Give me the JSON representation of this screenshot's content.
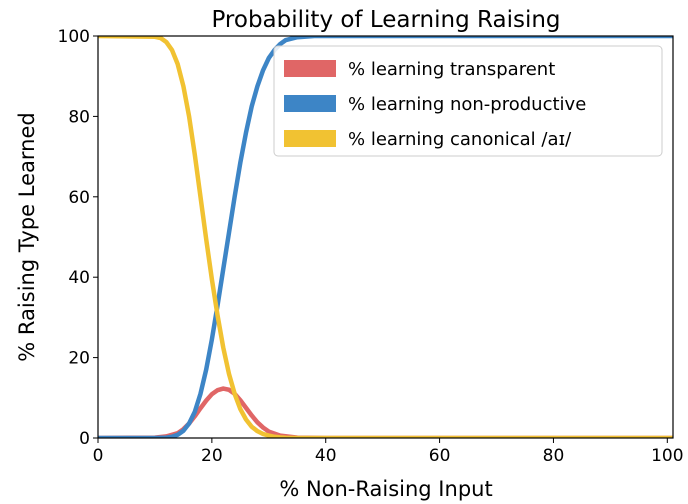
{
  "chart_data": {
    "type": "line",
    "title": "Probability of Learning Raising",
    "xlabel": "% Non-Raising Input",
    "ylabel": "% Raising Type Learned",
    "xlim": [
      0,
      101
    ],
    "ylim": [
      0,
      100
    ],
    "xticks": [
      "0",
      "20",
      "40",
      "60",
      "80",
      "100"
    ],
    "yticks": [
      "0",
      "20",
      "40",
      "60",
      "80",
      "100"
    ],
    "grid": false,
    "legend_position": "top-right",
    "series": [
      {
        "name": "% learning transparent",
        "color": "#e06666",
        "x": [
          0,
          10,
          12,
          14,
          15,
          16,
          17,
          18,
          19,
          20,
          21,
          22,
          23,
          24,
          25,
          26,
          27,
          28,
          29,
          30,
          32,
          35,
          40,
          50,
          60,
          70,
          80,
          90,
          101
        ],
        "y": [
          0,
          0.1,
          0.4,
          1.2,
          2.2,
          3.6,
          5.4,
          7.4,
          9.3,
          10.9,
          11.9,
          12.3,
          12.0,
          11.0,
          9.4,
          7.5,
          5.6,
          3.9,
          2.6,
          1.6,
          0.6,
          0.1,
          0,
          0,
          0,
          0,
          0,
          0,
          0
        ]
      },
      {
        "name": "% learning non-productive",
        "color": "#3d85c6",
        "x": [
          0,
          10,
          12,
          13,
          14,
          15,
          16,
          17,
          18,
          19,
          20,
          21,
          22,
          23,
          24,
          25,
          26,
          27,
          28,
          29,
          30,
          31,
          32,
          33,
          35,
          38,
          40,
          50,
          60,
          70,
          80,
          90,
          101
        ],
        "y": [
          0,
          0,
          0.1,
          0.3,
          0.8,
          1.8,
          3.6,
          6.5,
          11,
          17,
          24.5,
          33,
          42,
          51,
          60,
          68.5,
          76,
          82.5,
          87.5,
          91.5,
          94.5,
          96.5,
          98,
          99,
          99.7,
          100,
          100,
          100,
          100,
          100,
          100,
          100,
          100
        ]
      },
      {
        "name": "% learning canonical /aɪ/",
        "color": "#f1c232",
        "x": [
          0,
          10,
          11,
          12,
          13,
          14,
          15,
          16,
          17,
          18,
          19,
          20,
          21,
          22,
          23,
          24,
          25,
          26,
          27,
          28,
          29,
          30,
          31,
          32,
          33,
          35,
          38,
          40,
          50,
          60,
          70,
          80,
          90,
          101
        ],
        "y": [
          100,
          99.8,
          99.5,
          98.5,
          96.5,
          93,
          87.5,
          80,
          70.5,
          60,
          49.5,
          39.5,
          30.5,
          22.5,
          16,
          11,
          7.2,
          4.6,
          2.8,
          1.7,
          1.0,
          0.6,
          0.3,
          0.15,
          0.07,
          0,
          0,
          0,
          0,
          0,
          0,
          0,
          0,
          0
        ]
      }
    ]
  }
}
